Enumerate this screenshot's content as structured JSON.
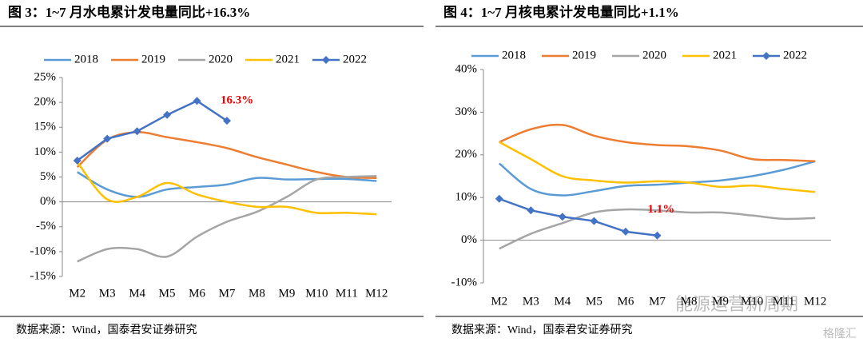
{
  "chart_data": [
    {
      "type": "line",
      "title": "图 3：1~7 月水电累计发电量同比+16.3%",
      "categories": [
        "M2",
        "M3",
        "M4",
        "M5",
        "M6",
        "M7",
        "M8",
        "M9",
        "M10",
        "M11",
        "M12"
      ],
      "ylim": [
        -15,
        25
      ],
      "yticks": [
        {
          "value": -15,
          "label": "-15%"
        },
        {
          "value": -10,
          "label": "-10%"
        },
        {
          "value": -5,
          "label": "-5%"
        },
        {
          "value": 0,
          "label": "0%"
        },
        {
          "value": 5,
          "label": "5%"
        },
        {
          "value": 10,
          "label": "10%"
        },
        {
          "value": 15,
          "label": "15%"
        },
        {
          "value": 20,
          "label": "20%"
        },
        {
          "value": 25,
          "label": "25%"
        }
      ],
      "series": [
        {
          "name": "2018",
          "color": "#5b9bd5",
          "values": [
            6,
            2.5,
            1,
            2.5,
            3,
            3.5,
            4.8,
            4.5,
            4.6,
            4.6,
            4.2
          ]
        },
        {
          "name": "2019",
          "color": "#ed7d31",
          "values": [
            7,
            12.5,
            14,
            13,
            12,
            10.8,
            9,
            7.5,
            6,
            5,
            4.8
          ]
        },
        {
          "name": "2020",
          "color": "#a5a5a5",
          "values": [
            -12,
            -9.5,
            -9.5,
            -11,
            -7,
            -4,
            -2,
            1,
            4.5,
            5,
            5.2
          ]
        },
        {
          "name": "2021",
          "color": "#ffc000",
          "values": [
            8,
            0.5,
            1,
            3.8,
            1.5,
            0,
            -1,
            -1,
            -2.2,
            -2.2,
            -2.5
          ]
        },
        {
          "name": "2022",
          "color": "#4472c4",
          "markers": true,
          "values": [
            8.3,
            12.7,
            14.2,
            17.5,
            20.3,
            16.3,
            null,
            null,
            null,
            null,
            null
          ]
        }
      ],
      "annotation": "16.3%",
      "source": "数据来源：Wind，国泰君安证券研究"
    },
    {
      "type": "line",
      "title": "图 4：1~7 月核电累计发电量同比+1.1%",
      "categories": [
        "M2",
        "M3",
        "M4",
        "M5",
        "M6",
        "M7",
        "M8",
        "M9",
        "M10",
        "M11",
        "M12"
      ],
      "ylim": [
        -10,
        40
      ],
      "yticks": [
        {
          "value": -10,
          "label": "-10%"
        },
        {
          "value": 0,
          "label": "0%"
        },
        {
          "value": 10,
          "label": "10%"
        },
        {
          "value": 20,
          "label": "20%"
        },
        {
          "value": 30,
          "label": "30%"
        },
        {
          "value": 40,
          "label": "40%"
        }
      ],
      "series": [
        {
          "name": "2018",
          "color": "#5b9bd5",
          "values": [
            18,
            12,
            10.5,
            11.5,
            12.7,
            13,
            13.5,
            14,
            15,
            16.5,
            18.5
          ]
        },
        {
          "name": "2019",
          "color": "#ed7d31",
          "values": [
            23,
            26,
            27,
            24.5,
            23,
            22.3,
            22,
            21,
            19,
            18.8,
            18.5
          ]
        },
        {
          "name": "2020",
          "color": "#a5a5a5",
          "values": [
            -2,
            1.5,
            4,
            6.5,
            7.2,
            7,
            6.5,
            6.5,
            5.8,
            5,
            5.2
          ]
        },
        {
          "name": "2021",
          "color": "#ffc000",
          "values": [
            23,
            19,
            15,
            14,
            13.5,
            13.8,
            13.5,
            12.5,
            12.8,
            12,
            11.3
          ]
        },
        {
          "name": "2022",
          "color": "#4472c4",
          "markers": true,
          "values": [
            9.7,
            7,
            5.5,
            4.5,
            2,
            1.1,
            null,
            null,
            null,
            null,
            null
          ]
        }
      ],
      "annotation": "1.1%",
      "source": "数据来源：Wind，国泰君安证券研究"
    }
  ],
  "watermarks": [
    "能源运营新周期",
    "格隆汇"
  ]
}
